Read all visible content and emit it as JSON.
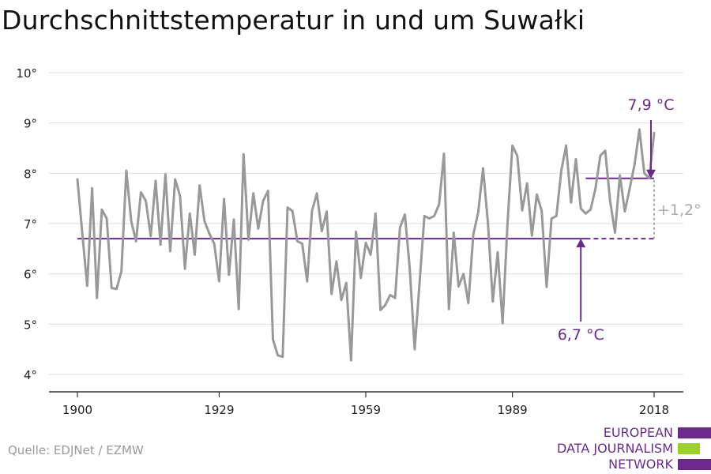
{
  "title": "Durchschnittstemperatur in und um Suwałki",
  "source": "Quelle: EDJNet / EZMW",
  "logo": {
    "lines": [
      "EUROPEAN",
      "DATA JOURNALISM",
      "NETWORK"
    ]
  },
  "colors": {
    "series": "#999999",
    "accent": "#6b2a8c",
    "grid": "#dddddd",
    "delta": "#aaaaaa",
    "logo_green": "#9bd12a"
  },
  "chart_data": {
    "type": "line",
    "title": "Durchschnittstemperatur in und um Suwałki",
    "xlabel": "",
    "ylabel": "",
    "xlim": [
      1900,
      2018
    ],
    "ylim": [
      4,
      10
    ],
    "x_ticks": [
      1900,
      1929,
      1959,
      1989,
      2018
    ],
    "y_ticks": [
      4,
      5,
      6,
      7,
      8,
      9,
      10
    ],
    "y_tick_labels": [
      "4°",
      "5°",
      "6°",
      "7°",
      "8°",
      "9°",
      "10°"
    ],
    "grid": true,
    "series": [
      {
        "x_start": 1900,
        "values": [
          7.88,
          6.8,
          5.76,
          7.7,
          5.52,
          7.28,
          7.1,
          5.72,
          5.7,
          6.05,
          8.05,
          7.05,
          6.65,
          7.62,
          7.45,
          6.75,
          7.85,
          6.58,
          7.98,
          6.45,
          7.88,
          7.55,
          6.1,
          7.2,
          6.38,
          7.76,
          7.05,
          6.8,
          6.6,
          5.85,
          7.49,
          5.98,
          7.08,
          5.3,
          8.38,
          6.68,
          7.6,
          6.9,
          7.45,
          7.65,
          4.7,
          4.38,
          4.35,
          7.32,
          7.25,
          6.65,
          6.6,
          5.85,
          7.25,
          7.6,
          6.85,
          7.24,
          5.6,
          6.25,
          5.48,
          5.82,
          4.28,
          6.84,
          5.92,
          6.62,
          6.38,
          7.2,
          5.28,
          5.38,
          5.58,
          5.52,
          6.92,
          7.18,
          6.1,
          4.5,
          5.82,
          7.15,
          7.1,
          7.15,
          7.38,
          8.39,
          5.3,
          6.82,
          5.75,
          6.0,
          5.42,
          6.78,
          7.22,
          8.1,
          7.0,
          5.45,
          6.43,
          5.02,
          7.0,
          8.55,
          8.35,
          7.26,
          7.8,
          6.76,
          7.58,
          7.25,
          5.74,
          7.1,
          7.15,
          8.05,
          8.55,
          7.42,
          8.28,
          7.3,
          7.2,
          7.28,
          7.7,
          8.35,
          8.45,
          7.45,
          6.82,
          7.96,
          7.24,
          7.7,
          8.18,
          8.87,
          8.0,
          7.9,
          8.8
        ]
      }
    ],
    "baseline": {
      "value": 6.7,
      "from": 1900,
      "solid_to": 2004,
      "to": 2018
    },
    "recent_mean": {
      "value": 7.9,
      "from": 2004,
      "to": 2018
    },
    "annotations": {
      "recent_label": "7,9 °C",
      "baseline_label": "6,7 °C",
      "delta_label": "+1,2°"
    }
  }
}
